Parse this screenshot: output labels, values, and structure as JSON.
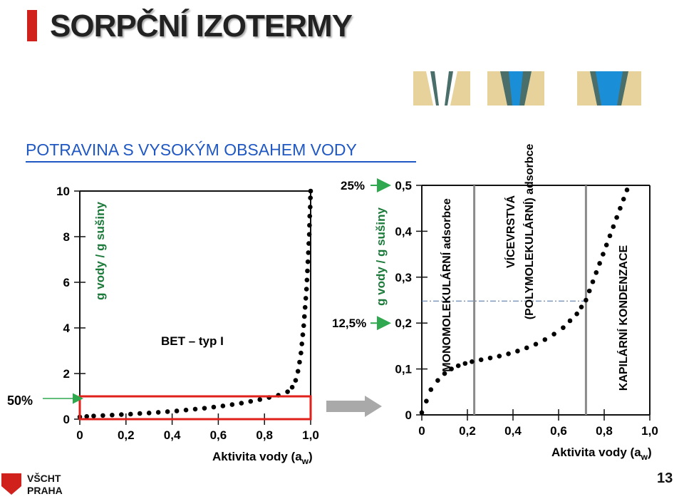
{
  "slide": {
    "title": "SORPČNÍ IZOTERMY",
    "subtitle": "POTRAVINA S VYSOKÝM OBSAHEM VODY",
    "page_number": "13",
    "logo_line1": "VŠCHT",
    "logo_line2": "PRAHA"
  },
  "colors": {
    "accent": "#d0211c",
    "subtitle": "#1f57c3",
    "water_blue": "#1a8fd8",
    "pore_wall": "#4a6e6a"
  },
  "left_chart": {
    "type": "scatter",
    "ylabel": "g vody / g sušiny",
    "xlabel_main": "Aktivita vody (a",
    "xlabel_sub": "w",
    "xlabel_end": ")",
    "x_ticks": [
      "0",
      "0,2",
      "0,4",
      "0,6",
      "0,8",
      "1,0"
    ],
    "y_ticks": [
      "0",
      "2",
      "4",
      "6",
      "8",
      "10"
    ],
    "xlim": [
      0,
      1.0
    ],
    "ylim": [
      0,
      10
    ],
    "annotation": "BET – typ I",
    "marker_label": "50%",
    "highlight_range": {
      "x": [
        0,
        1.0
      ],
      "y": [
        0,
        1.0
      ]
    },
    "points": [
      [
        0.0,
        0.1
      ],
      [
        0.03,
        0.12
      ],
      [
        0.06,
        0.14
      ],
      [
        0.1,
        0.16
      ],
      [
        0.14,
        0.18
      ],
      [
        0.18,
        0.2
      ],
      [
        0.22,
        0.22
      ],
      [
        0.26,
        0.25
      ],
      [
        0.3,
        0.27
      ],
      [
        0.34,
        0.3
      ],
      [
        0.38,
        0.33
      ],
      [
        0.42,
        0.36
      ],
      [
        0.46,
        0.4
      ],
      [
        0.5,
        0.44
      ],
      [
        0.54,
        0.48
      ],
      [
        0.58,
        0.53
      ],
      [
        0.62,
        0.58
      ],
      [
        0.66,
        0.64
      ],
      [
        0.7,
        0.7
      ],
      [
        0.74,
        0.78
      ],
      [
        0.78,
        0.86
      ],
      [
        0.82,
        0.95
      ],
      [
        0.86,
        1.05
      ],
      [
        0.9,
        1.2
      ],
      [
        0.92,
        1.4
      ],
      [
        0.935,
        1.7
      ],
      [
        0.945,
        2.1
      ],
      [
        0.952,
        2.5
      ],
      [
        0.958,
        2.9
      ],
      [
        0.962,
        3.3
      ],
      [
        0.966,
        3.7
      ],
      [
        0.97,
        4.1
      ],
      [
        0.973,
        4.5
      ],
      [
        0.976,
        4.9
      ],
      [
        0.979,
        5.3
      ],
      [
        0.982,
        5.7
      ],
      [
        0.984,
        6.1
      ],
      [
        0.986,
        6.5
      ],
      [
        0.988,
        6.9
      ],
      [
        0.99,
        7.3
      ],
      [
        0.992,
        7.7
      ],
      [
        0.994,
        8.1
      ],
      [
        0.995,
        8.5
      ],
      [
        0.996,
        8.9
      ],
      [
        0.998,
        9.3
      ],
      [
        0.999,
        9.7
      ],
      [
        1.0,
        10.0
      ]
    ]
  },
  "right_chart": {
    "type": "scatter",
    "ylabel": "g vody / g sušiny",
    "xlabel_main": "Aktivita vody (a",
    "xlabel_sub": "w",
    "xlabel_end": ")",
    "x_ticks": [
      "0",
      "0,2",
      "0,4",
      "0,6",
      "0,8",
      "1,0"
    ],
    "y_ticks": [
      "0",
      "0,1",
      "0,2",
      "0,3",
      "0,4",
      "0,5"
    ],
    "xlim": [
      0,
      1.0
    ],
    "ylim": [
      0,
      0.5
    ],
    "percent_top": "25%",
    "percent_mid": "12,5%",
    "region1_label": "MONOMOLEKULÁRNÍ adsorbce",
    "region2_label_line1": "VÍCEVRSTVÁ",
    "region2_label_line2": "(POLYMOLEKULÁRNÍ) adsorbce",
    "region3_label": "KAPILÁRNÍ KONDENZACE",
    "dividers_x": [
      0.23,
      0.72
    ],
    "reference_y": 0.248,
    "points": [
      [
        0.0,
        0.005
      ],
      [
        0.02,
        0.03
      ],
      [
        0.04,
        0.055
      ],
      [
        0.07,
        0.075
      ],
      [
        0.1,
        0.09
      ],
      [
        0.13,
        0.1
      ],
      [
        0.16,
        0.107
      ],
      [
        0.19,
        0.112
      ],
      [
        0.22,
        0.116
      ],
      [
        0.26,
        0.12
      ],
      [
        0.3,
        0.124
      ],
      [
        0.34,
        0.128
      ],
      [
        0.38,
        0.133
      ],
      [
        0.42,
        0.139
      ],
      [
        0.46,
        0.146
      ],
      [
        0.5,
        0.154
      ],
      [
        0.54,
        0.164
      ],
      [
        0.58,
        0.176
      ],
      [
        0.62,
        0.19
      ],
      [
        0.65,
        0.205
      ],
      [
        0.68,
        0.22
      ],
      [
        0.7,
        0.235
      ],
      [
        0.72,
        0.25
      ],
      [
        0.735,
        0.27
      ],
      [
        0.75,
        0.29
      ],
      [
        0.765,
        0.31
      ],
      [
        0.78,
        0.33
      ],
      [
        0.795,
        0.35
      ],
      [
        0.81,
        0.37
      ],
      [
        0.825,
        0.39
      ],
      [
        0.84,
        0.41
      ],
      [
        0.855,
        0.43
      ],
      [
        0.87,
        0.45
      ],
      [
        0.885,
        0.47
      ],
      [
        0.9,
        0.49
      ]
    ]
  }
}
